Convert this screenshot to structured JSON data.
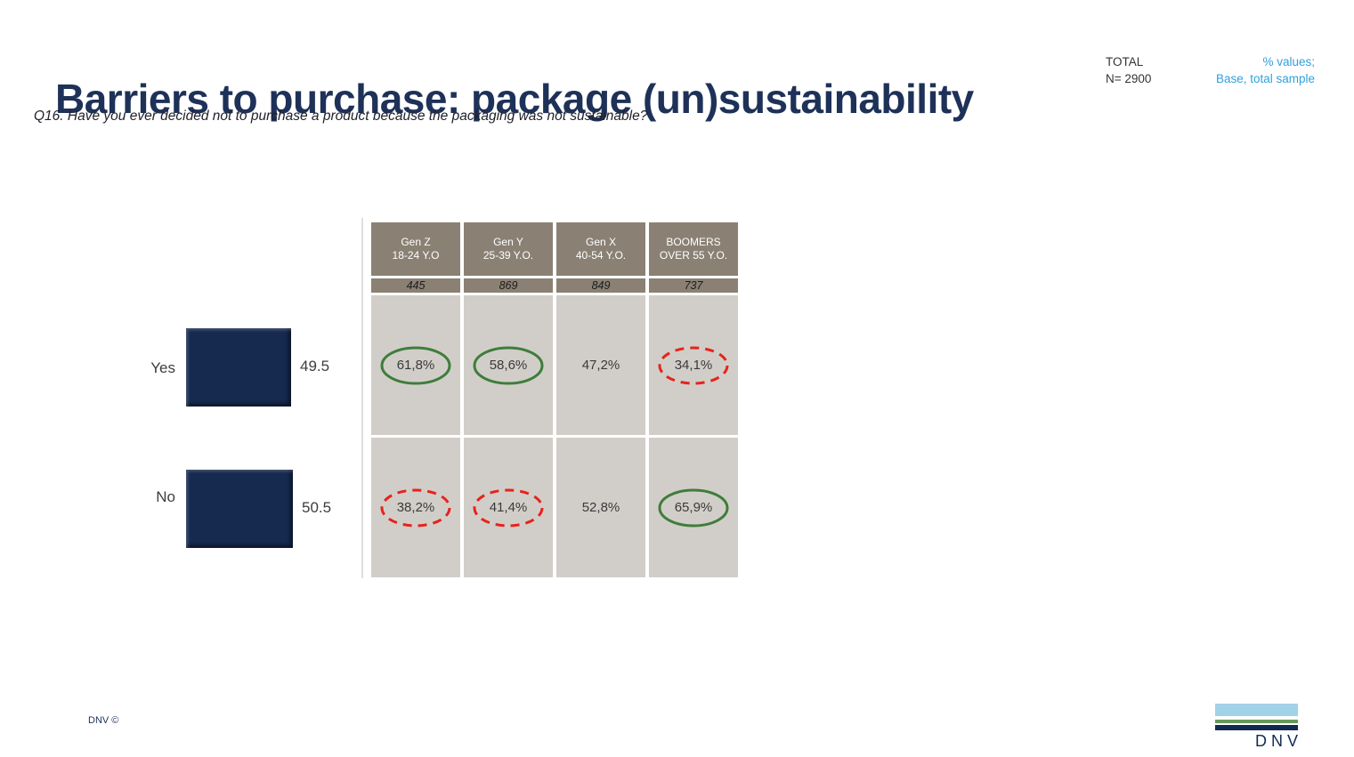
{
  "header": {
    "title": "Barriers to purchase: package (un)sustainability",
    "question": "Q16. Have you ever decided not to purchase a product because the packaging was not sustainable?",
    "total": {
      "label": "TOTAL",
      "n": "N= 2900"
    },
    "note": {
      "line1": "% values;",
      "line2": "Base, total sample"
    }
  },
  "chart_data": {
    "type": "bar",
    "orientation": "horizontal",
    "title": "",
    "categories": [
      "Yes",
      "No"
    ],
    "values": [
      49.5,
      50.5
    ],
    "value_labels": [
      "49.5",
      "50.5"
    ],
    "xlim": [
      0,
      100
    ],
    "grid": false,
    "bar_color": "#16294F"
  },
  "table": {
    "header": [
      {
        "line1": "Gen Z",
        "line2": "18-24 Y.O"
      },
      {
        "line1": "Gen Y",
        "line2": "25-39 Y.O."
      },
      {
        "line1": "Gen X",
        "line2": "40-54 Y.O."
      },
      {
        "line1": "BOOMERS",
        "line2": "OVER 55 Y.O."
      }
    ],
    "bases": [
      "445",
      "869",
      "849",
      "737"
    ],
    "rows": [
      {
        "label": "Yes",
        "cells": [
          {
            "value": "61,8%",
            "highlight": "green"
          },
          {
            "value": "58,6%",
            "highlight": "green"
          },
          {
            "value": "47,2%",
            "highlight": "none"
          },
          {
            "value": "34,1%",
            "highlight": "red"
          }
        ]
      },
      {
        "label": "No",
        "cells": [
          {
            "value": "38,2%",
            "highlight": "red"
          },
          {
            "value": "41,4%",
            "highlight": "red"
          },
          {
            "value": "52,8%",
            "highlight": "none"
          },
          {
            "value": "65,9%",
            "highlight": "green"
          }
        ]
      }
    ]
  },
  "footer": {
    "copyright": "DNV ©",
    "logo_text": "DNV"
  },
  "colors": {
    "title": "#1E3158",
    "note_blue": "#2FA1DC",
    "bar_navy": "#16294F",
    "table_header_bg": "#8A8174",
    "table_cell_bg": "#D1CEC9",
    "highlight_green": "#3F7D3A",
    "highlight_red": "#E8221B",
    "logo_light_blue": "#A2D2E7",
    "logo_green": "#66995A",
    "logo_navy": "#132A50"
  }
}
